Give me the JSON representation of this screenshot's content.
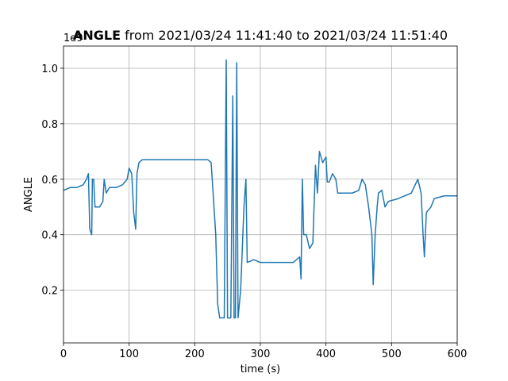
{
  "chart_data": {
    "type": "line",
    "title_bold": "ANGLE",
    "title": "from 2021/03/24 11:41:40 to 2021/03/24 11:51:40",
    "x_label": "time (s)",
    "y_label": "ANGLE",
    "y_offset_label": "1e9",
    "xlim": [
      0,
      600
    ],
    "ylim": [
      0.01,
      1.08
    ],
    "xticks": [
      0,
      100,
      200,
      300,
      400,
      500,
      600
    ],
    "yticks": [
      0.2,
      0.4,
      0.6,
      0.8,
      {
        "value": 1,
        "label": "1.0"
      }
    ],
    "grid": true,
    "series": [
      {
        "name": "ANGLE",
        "color": "#1f77b4",
        "x": [
          0,
          10,
          20,
          30,
          35,
          38,
          40,
          43,
          44,
          46,
          48,
          55,
          60,
          62,
          65,
          70,
          80,
          90,
          97,
          100,
          104,
          107,
          110,
          112,
          115,
          120,
          150,
          180,
          200,
          220,
          225,
          228,
          232,
          235,
          238,
          245,
          248,
          250,
          255,
          258,
          260,
          262,
          264,
          266,
          270,
          275,
          278,
          280,
          290,
          300,
          330,
          350,
          360,
          362,
          364,
          366,
          370,
          375,
          380,
          384,
          387,
          390,
          395,
          400,
          402,
          405,
          410,
          415,
          418,
          430,
          440,
          450,
          455,
          460,
          465,
          470,
          472,
          475,
          478,
          480,
          485,
          490,
          495,
          510,
          530,
          540,
          545,
          548,
          550,
          553,
          560,
          565,
          580,
          600
        ],
        "values": [
          0.56,
          0.57,
          0.57,
          0.58,
          0.6,
          0.62,
          0.42,
          0.4,
          0.6,
          0.6,
          0.5,
          0.5,
          0.52,
          0.6,
          0.55,
          0.57,
          0.57,
          0.58,
          0.6,
          0.64,
          0.62,
          0.48,
          0.42,
          0.62,
          0.66,
          0.67,
          0.67,
          0.67,
          0.67,
          0.67,
          0.66,
          0.55,
          0.4,
          0.15,
          0.1,
          0.1,
          1.03,
          0.1,
          0.1,
          0.9,
          0.1,
          0.1,
          1.02,
          0.1,
          0.2,
          0.5,
          0.6,
          0.3,
          0.31,
          0.3,
          0.3,
          0.3,
          0.32,
          0.24,
          0.6,
          0.4,
          0.4,
          0.35,
          0.37,
          0.65,
          0.55,
          0.7,
          0.66,
          0.68,
          0.59,
          0.59,
          0.62,
          0.6,
          0.55,
          0.55,
          0.55,
          0.56,
          0.6,
          0.58,
          0.5,
          0.4,
          0.22,
          0.4,
          0.5,
          0.55,
          0.56,
          0.5,
          0.52,
          0.53,
          0.55,
          0.6,
          0.55,
          0.4,
          0.32,
          0.48,
          0.5,
          0.53,
          0.54,
          0.54
        ]
      }
    ]
  }
}
